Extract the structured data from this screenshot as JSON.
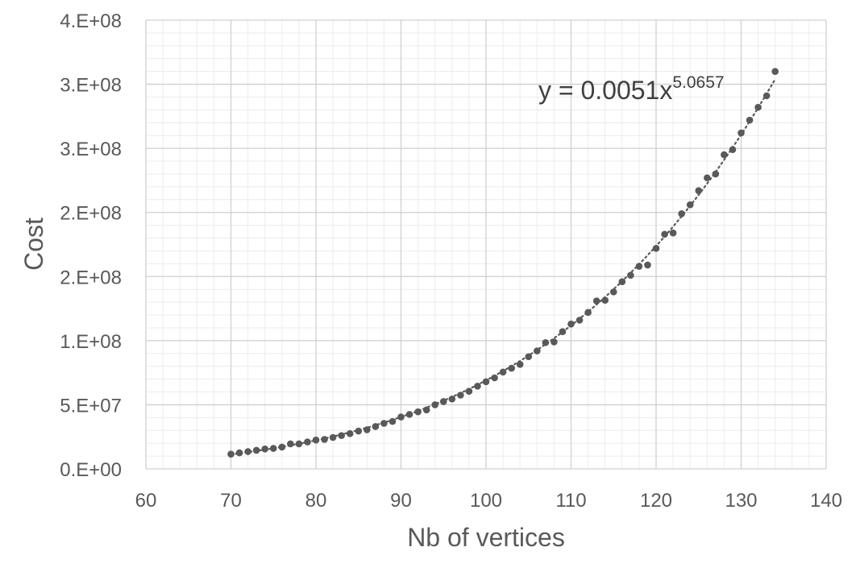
{
  "chart_data": {
    "type": "scatter",
    "xlabel": "Nb of vertices",
    "ylabel": "Cost",
    "xlim": [
      60,
      140
    ],
    "ylim": [
      0,
      350000000
    ],
    "x_ticks": [
      "60",
      "70",
      "80",
      "90",
      "100",
      "110",
      "120",
      "130",
      "140"
    ],
    "y_ticks": [
      "0.E+00",
      "5.E+07",
      "1.E+08",
      "2.E+08",
      "2.E+08",
      "3.E+08",
      "3.E+08",
      "4.E+08"
    ],
    "grid": true,
    "minor_grid": true,
    "marker_color": "#595959",
    "trendline": {
      "type": "power",
      "coefficient": 0.0051,
      "exponent": 5.0657,
      "style": "dotted",
      "equation_text": "y = 0.0051x",
      "equation_exponent": "5.0657"
    },
    "series": [
      {
        "x": [
          70,
          71,
          72,
          73,
          74,
          75,
          76,
          77,
          78,
          79,
          80,
          81,
          82,
          83,
          84,
          85,
          86,
          87,
          88,
          89,
          90,
          91,
          92,
          93,
          94,
          95,
          96,
          97,
          98,
          99,
          100,
          101,
          102,
          103,
          104,
          105,
          106,
          107,
          108,
          109,
          110,
          111,
          112,
          113,
          114,
          115,
          116,
          117,
          118,
          119,
          120,
          121,
          122,
          123,
          124,
          125,
          126,
          127,
          128,
          129,
          130,
          131,
          132,
          133,
          134
        ],
        "y": [
          11500000,
          12500000,
          13500000,
          14500000,
          15500000,
          16000000,
          17000000,
          19500000,
          19500000,
          21000000,
          22500000,
          23000000,
          24500000,
          26000000,
          27500000,
          29500000,
          30500000,
          33000000,
          35500000,
          37000000,
          40500000,
          42500000,
          44500000,
          46000000,
          50000000,
          52500000,
          54500000,
          57500000,
          60500000,
          64500000,
          68000000,
          71000000,
          75500000,
          78500000,
          81500000,
          87500000,
          92000000,
          98500000,
          99000000,
          107000000,
          113000000,
          116000000,
          122000000,
          131000000,
          131500000,
          138000000,
          146000000,
          151000000,
          158000000,
          159000000,
          172000000,
          183000000,
          184000000,
          199000000,
          206000000,
          217000000,
          227000000,
          230000000,
          245000000,
          249000000,
          262000000,
          272000000,
          282000000,
          291000000,
          310000000
        ]
      }
    ]
  }
}
